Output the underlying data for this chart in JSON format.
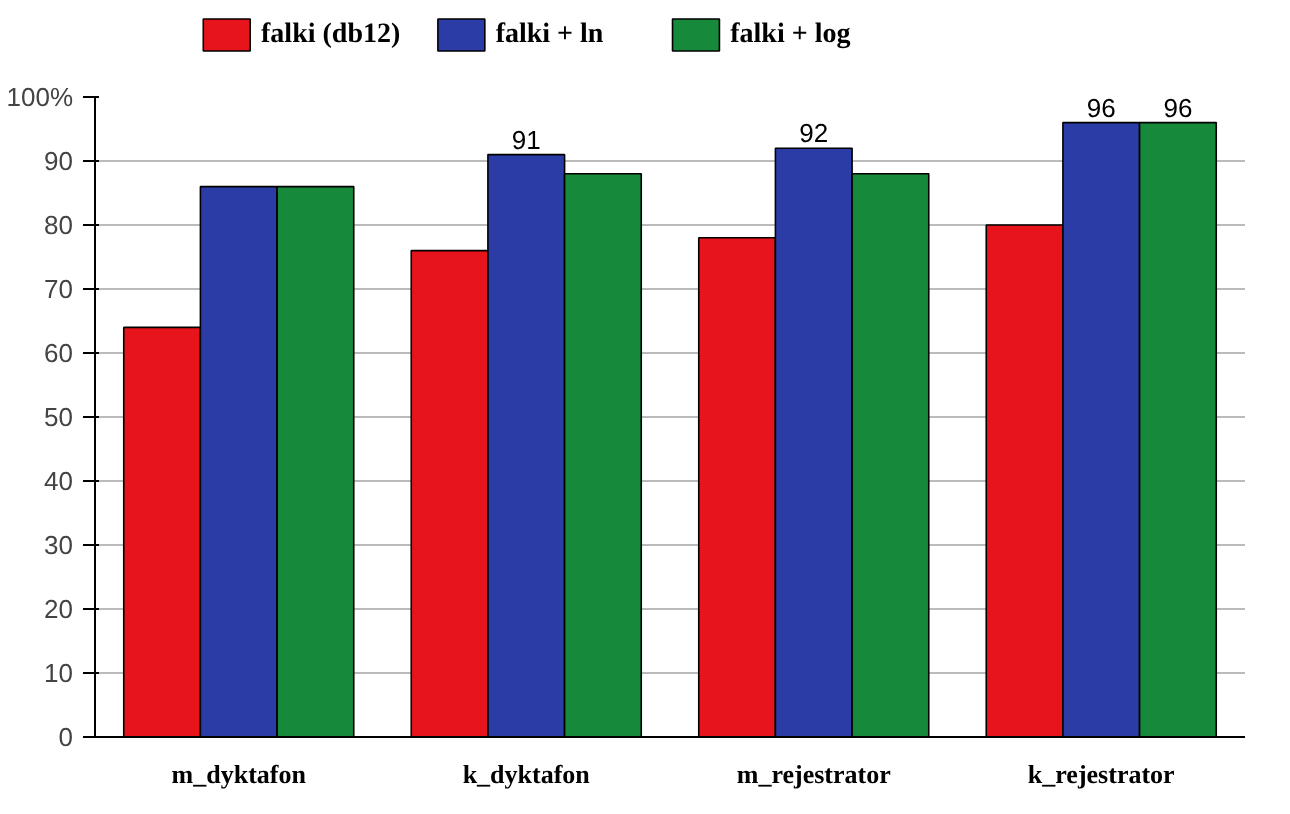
{
  "chart_data": {
    "type": "bar",
    "categories": [
      "m_dyktafon",
      "k_dyktafon",
      "m_rejestrator",
      "k_rejestrator"
    ],
    "series": [
      {
        "name": "falki (db12)",
        "color": "#e8141c",
        "values": [
          64,
          76,
          78,
          80
        ]
      },
      {
        "name": "falki + ln",
        "color": "#2b3ca6",
        "values": [
          86,
          91,
          92,
          96
        ],
        "value_labels": [
          null,
          "91",
          "92",
          "96"
        ]
      },
      {
        "name": "falki + log",
        "color": "#17893a",
        "values": [
          86,
          88,
          88,
          96
        ],
        "value_labels": [
          null,
          null,
          null,
          "96"
        ]
      }
    ],
    "ylim": [
      0,
      100
    ],
    "yticks": [
      0,
      10,
      20,
      30,
      40,
      50,
      60,
      70,
      80,
      90,
      {
        "value": 100,
        "label": "100%"
      }
    ],
    "grid": "y",
    "legend": "top"
  }
}
